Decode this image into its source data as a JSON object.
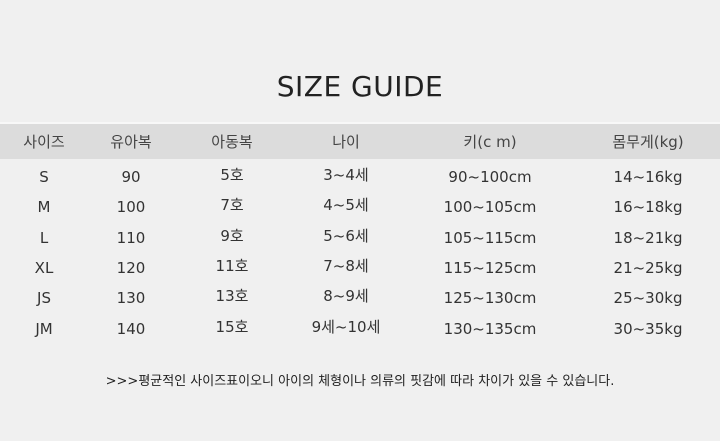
{
  "title": "SIZE GUIDE",
  "headers": [
    "사이즈",
    "유아복",
    "아동복",
    "나이",
    "키(c m)",
    "몸무게(kg)"
  ],
  "rows": [
    [
      "S",
      "90",
      "5호",
      "3~4세",
      "90~100cm",
      "14~16kg"
    ],
    [
      "M",
      "100",
      "7호",
      "4~5세",
      "100~105cm",
      "16~18kg"
    ],
    [
      "L",
      "110",
      "9호",
      "5~6세",
      "105~115cm",
      "18~21kg"
    ],
    [
      "XL",
      "120",
      "11호",
      "7~8세",
      "115~125cm",
      "21~25kg"
    ],
    [
      "JS",
      "130",
      "13호",
      "8~9세",
      "125~130cm",
      "25~30kg"
    ],
    [
      "JM",
      "140",
      "15호",
      "9세~10세",
      "130~135cm",
      "30~35kg"
    ]
  ],
  "note": ">>>평균적인 사이즈표이오니 아이의 체형이나 의류의 핏감에 따라 차이가 있을 수 있습니다."
}
